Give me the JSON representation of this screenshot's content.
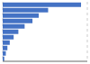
{
  "chart_data": {
    "type": "bar",
    "orientation": "horizontal",
    "values": [
      100,
      58,
      46,
      38,
      28,
      20,
      14,
      9,
      6,
      4,
      2
    ],
    "color": "#4472c4",
    "xlim": [
      0,
      108
    ],
    "xticks": [
      35,
      70,
      105
    ],
    "grid": true,
    "tick_labels": false
  }
}
